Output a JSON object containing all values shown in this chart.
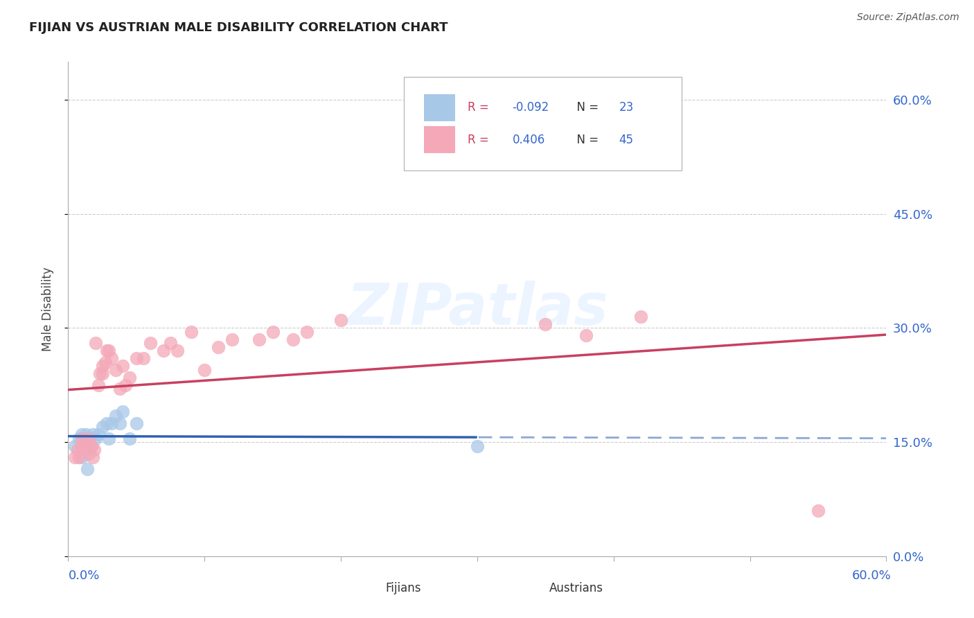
{
  "title": "FIJIAN VS AUSTRIAN MALE DISABILITY CORRELATION CHART",
  "source": "Source: ZipAtlas.com",
  "ylabel": "Male Disability",
  "ytick_values": [
    0.0,
    0.15,
    0.3,
    0.45,
    0.6
  ],
  "xlim": [
    0.0,
    0.6
  ],
  "ylim": [
    0.0,
    0.65
  ],
  "fijian_R": -0.092,
  "fijian_N": 23,
  "austrian_R": 0.406,
  "austrian_N": 45,
  "fijian_color": "#a8c8e8",
  "austrian_color": "#f4a8b8",
  "fijian_line_color": "#3060b0",
  "austrian_line_color": "#c84060",
  "fijian_x": [
    0.005,
    0.008,
    0.01,
    0.01,
    0.012,
    0.013,
    0.014,
    0.015,
    0.015,
    0.017,
    0.018,
    0.02,
    0.022,
    0.025,
    0.028,
    0.03,
    0.032,
    0.035,
    0.038,
    0.04,
    0.045,
    0.05,
    0.3
  ],
  "fijian_y": [
    0.145,
    0.155,
    0.13,
    0.16,
    0.14,
    0.16,
    0.115,
    0.145,
    0.155,
    0.145,
    0.16,
    0.155,
    0.16,
    0.17,
    0.175,
    0.155,
    0.175,
    0.185,
    0.175,
    0.19,
    0.155,
    0.175,
    0.145
  ],
  "austrian_x": [
    0.005,
    0.007,
    0.008,
    0.01,
    0.01,
    0.012,
    0.013,
    0.015,
    0.015,
    0.017,
    0.018,
    0.019,
    0.02,
    0.022,
    0.023,
    0.025,
    0.025,
    0.027,
    0.028,
    0.03,
    0.032,
    0.035,
    0.038,
    0.04,
    0.042,
    0.045,
    0.05,
    0.055,
    0.06,
    0.07,
    0.075,
    0.08,
    0.09,
    0.1,
    0.11,
    0.12,
    0.14,
    0.15,
    0.165,
    0.175,
    0.2,
    0.35,
    0.38,
    0.42,
    0.55
  ],
  "austrian_y": [
    0.13,
    0.14,
    0.13,
    0.145,
    0.155,
    0.145,
    0.145,
    0.135,
    0.155,
    0.145,
    0.13,
    0.14,
    0.28,
    0.225,
    0.24,
    0.24,
    0.25,
    0.255,
    0.27,
    0.27,
    0.26,
    0.245,
    0.22,
    0.25,
    0.225,
    0.235,
    0.26,
    0.26,
    0.28,
    0.27,
    0.28,
    0.27,
    0.295,
    0.245,
    0.275,
    0.285,
    0.285,
    0.295,
    0.285,
    0.295,
    0.31,
    0.305,
    0.29,
    0.315,
    0.06
  ]
}
